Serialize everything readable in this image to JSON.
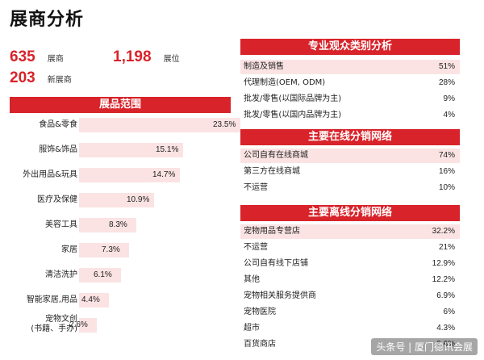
{
  "title": "展商分析",
  "stats": [
    {
      "value": "635",
      "label": "展商"
    },
    {
      "value": "1,198",
      "label": "展位"
    },
    {
      "value": "203",
      "label": "新展商"
    }
  ],
  "categories": {
    "header": "展品范围",
    "items": [
      {
        "label": "食品&零食",
        "value": "23.5%",
        "pct": 23.5
      },
      {
        "label": "服饰&饰品",
        "value": "15.1%",
        "pct": 15.1
      },
      {
        "label": "外出用品&玩具",
        "value": "14.7%",
        "pct": 14.7
      },
      {
        "label": "医疗及保健",
        "value": "10.9%",
        "pct": 10.9
      },
      {
        "label": "美容工具",
        "value": "8.3%",
        "pct": 8.3
      },
      {
        "label": "家居",
        "value": "7.3%",
        "pct": 7.3
      },
      {
        "label": "清洁洗护",
        "value": "6.1%",
        "pct": 6.1
      },
      {
        "label": "智能家居,用品",
        "value": "4.4%",
        "pct": 4.4
      },
      {
        "label": "宠物文创\n(书籍、手办)",
        "value": "2.6%",
        "pct": 2.6
      }
    ]
  },
  "visitor_types": {
    "header": "专业观众类别分析",
    "rows": [
      {
        "label": "制造及销售",
        "value": "51%"
      },
      {
        "label": "代理制造(OEM, ODM)",
        "value": "28%"
      },
      {
        "label": "批发/零售(以国际品牌为主)",
        "value": "9%"
      },
      {
        "label": "批发/零售(以国内品牌为主)",
        "value": "4%"
      }
    ]
  },
  "online_network": {
    "header": "主要在线分销网络",
    "rows": [
      {
        "label": "公司自有在线商城",
        "value": "74%"
      },
      {
        "label": "第三方在线商城",
        "value": "16%"
      },
      {
        "label": "不运营",
        "value": "10%"
      }
    ]
  },
  "offline_network": {
    "header": "主要离线分销网络",
    "rows": [
      {
        "label": "宠物用品专营店",
        "value": "32.2%"
      },
      {
        "label": "不运营",
        "value": "21%"
      },
      {
        "label": "公司自有线下店铺",
        "value": "12.9%"
      },
      {
        "label": "其他",
        "value": "12.2%"
      },
      {
        "label": "宠物相关服务提供商",
        "value": "6.9%"
      },
      {
        "label": "宠物医院",
        "value": "6%"
      },
      {
        "label": "超市",
        "value": "4.3%"
      },
      {
        "label": "百货商店",
        "value": "3.6%"
      }
    ]
  },
  "watermark": "头条号 | 厦门德讯会展",
  "colors": {
    "accent": "#d8232a",
    "bar": "#fbe3e3"
  }
}
